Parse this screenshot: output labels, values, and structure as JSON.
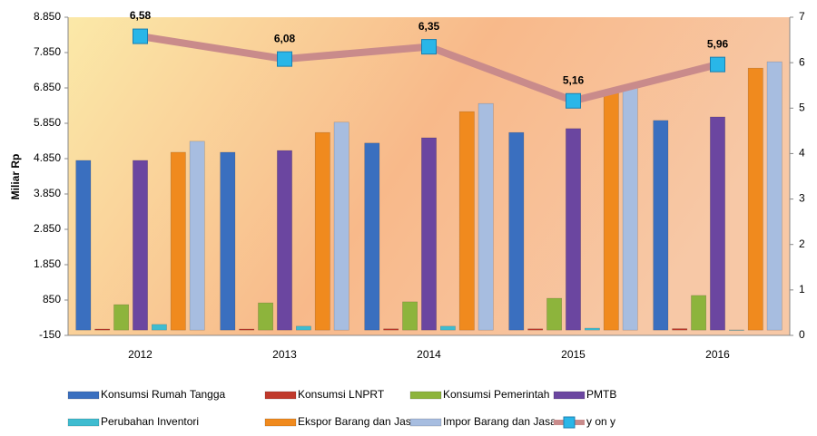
{
  "chart_data": {
    "type": "bar",
    "y_axis_label": "Miliar Rp",
    "categories": [
      "2012",
      "2013",
      "2014",
      "2015",
      "2016"
    ],
    "ylim": [
      -150,
      8850
    ],
    "yticks": [
      -150,
      850,
      {
        "value": 1850,
        "label": "1.850"
      },
      {
        "value": 2850,
        "label": "2.850"
      },
      {
        "value": 3850,
        "label": "3.850"
      },
      {
        "value": 4850,
        "label": "4.850"
      },
      {
        "value": 5850,
        "label": "5.850"
      },
      {
        "value": 6850,
        "label": "6.850"
      },
      {
        "value": 7850,
        "label": "7.850"
      },
      {
        "value": 8850,
        "label": "8.850"
      }
    ],
    "y2lim": [
      0,
      7
    ],
    "y2ticks": [
      0,
      1,
      2,
      3,
      4,
      5,
      6,
      7
    ],
    "grid": false,
    "legend": "bottom",
    "series": [
      {
        "name": "Konsumsi Rumah Tangga",
        "color": "#3a6fbf",
        "values": [
          4800,
          5030,
          5290,
          5590,
          5930
        ]
      },
      {
        "name": "Konsumsi LNPRT",
        "color": "#c0392b",
        "values": [
          30,
          30,
          35,
          35,
          40
        ]
      },
      {
        "name": "Konsumsi Pemerintah",
        "color": "#8db43c",
        "values": [
          720,
          770,
          800,
          900,
          980
        ]
      },
      {
        "name": "PMTB",
        "color": "#6b46a0",
        "values": [
          4800,
          5080,
          5440,
          5700,
          6030
        ]
      },
      {
        "name": "Perubahan Inventori",
        "color": "#3fbcd0",
        "values": [
          160,
          110,
          110,
          55,
          5
        ]
      },
      {
        "name": "Ekspor Barang dan Jasa",
        "color": "#f08a1e",
        "values": [
          5030,
          5590,
          6180,
          6720,
          7410
        ]
      },
      {
        "name": "Impor Barang dan Jasa",
        "color": "#a7bde0",
        "values": [
          5340,
          5880,
          6410,
          6900,
          7590
        ]
      },
      {
        "name": "y on y",
        "type": "line",
        "axis": "y2",
        "color": "#c98b8b",
        "marker_color": "#29b6e8",
        "values": [
          6.58,
          6.08,
          6.35,
          5.16,
          5.96
        ],
        "value_labels": [
          "6,58",
          "6,08",
          "6,35",
          "5,16",
          "5,96"
        ]
      }
    ]
  }
}
